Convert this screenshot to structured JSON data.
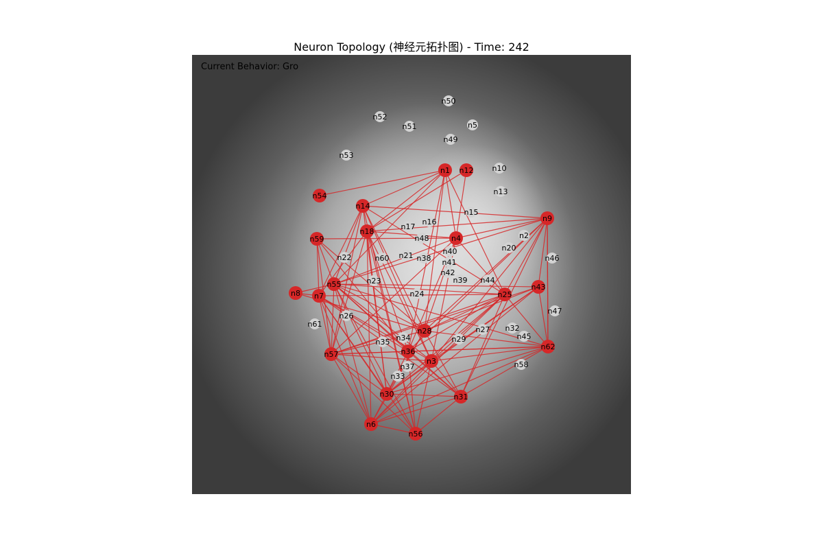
{
  "title": "Neuron Topology (神经元拓扑图) - Time: 242",
  "status": {
    "behavior": "Current Behavior: Gro"
  },
  "colors": {
    "active": "#d62728",
    "inactive": "#d3d3d3",
    "edge": "#d62728",
    "background": "#3a3a3a"
  },
  "nodes": [
    {
      "id": "n1",
      "active": true
    },
    {
      "id": "n12",
      "active": true
    },
    {
      "id": "n54",
      "active": true
    },
    {
      "id": "n14",
      "active": true
    },
    {
      "id": "n18",
      "active": true
    },
    {
      "id": "n59",
      "active": true
    },
    {
      "id": "n4",
      "active": true
    },
    {
      "id": "n9",
      "active": true
    },
    {
      "id": "n55",
      "active": true
    },
    {
      "id": "n8",
      "active": true
    },
    {
      "id": "n7",
      "active": true
    },
    {
      "id": "n25",
      "active": true
    },
    {
      "id": "n43",
      "active": true
    },
    {
      "id": "n28",
      "active": true
    },
    {
      "id": "n36",
      "active": true
    },
    {
      "id": "n3",
      "active": true
    },
    {
      "id": "n57",
      "active": true
    },
    {
      "id": "n62",
      "active": true
    },
    {
      "id": "n30",
      "active": true
    },
    {
      "id": "n31",
      "active": true
    },
    {
      "id": "n6",
      "active": true
    },
    {
      "id": "n56",
      "active": true
    },
    {
      "id": "n50",
      "active": false
    },
    {
      "id": "n52",
      "active": false
    },
    {
      "id": "n51",
      "active": false
    },
    {
      "id": "n5",
      "active": false
    },
    {
      "id": "n49",
      "active": false
    },
    {
      "id": "n53",
      "active": false
    },
    {
      "id": "n10",
      "active": false
    },
    {
      "id": "n13",
      "active": false
    },
    {
      "id": "n15",
      "active": false
    },
    {
      "id": "n16",
      "active": false
    },
    {
      "id": "n17",
      "active": false
    },
    {
      "id": "n48",
      "active": false
    },
    {
      "id": "n2",
      "active": false
    },
    {
      "id": "n20",
      "active": false
    },
    {
      "id": "n46",
      "active": false
    },
    {
      "id": "n40",
      "active": false
    },
    {
      "id": "n22",
      "active": false
    },
    {
      "id": "n60",
      "active": false
    },
    {
      "id": "n21",
      "active": false
    },
    {
      "id": "n38",
      "active": false
    },
    {
      "id": "n41",
      "active": false
    },
    {
      "id": "n42",
      "active": false
    },
    {
      "id": "n39",
      "active": false
    },
    {
      "id": "n44",
      "active": false
    },
    {
      "id": "n23",
      "active": false
    },
    {
      "id": "n24",
      "active": false
    },
    {
      "id": "n47",
      "active": false
    },
    {
      "id": "n26",
      "active": false
    },
    {
      "id": "n61",
      "active": false
    },
    {
      "id": "n27",
      "active": false
    },
    {
      "id": "n32",
      "active": false
    },
    {
      "id": "n45",
      "active": false
    },
    {
      "id": "n34",
      "active": false
    },
    {
      "id": "n35",
      "active": false
    },
    {
      "id": "n29",
      "active": false
    },
    {
      "id": "n37",
      "active": false
    },
    {
      "id": "n33",
      "active": false
    },
    {
      "id": "n58",
      "active": false
    }
  ],
  "edges": [
    [
      "n1",
      "n54"
    ],
    [
      "n1",
      "n14"
    ],
    [
      "n1",
      "n18"
    ],
    [
      "n1",
      "n4"
    ],
    [
      "n1",
      "n25"
    ],
    [
      "n1",
      "n55"
    ],
    [
      "n1",
      "n36"
    ],
    [
      "n1",
      "n28"
    ],
    [
      "n12",
      "n4"
    ],
    [
      "n12",
      "n18"
    ],
    [
      "n14",
      "n9"
    ],
    [
      "n14",
      "n25"
    ],
    [
      "n14",
      "n57"
    ],
    [
      "n14",
      "n3"
    ],
    [
      "n14",
      "n7"
    ],
    [
      "n14",
      "n30"
    ],
    [
      "n14",
      "n28"
    ],
    [
      "n14",
      "n55"
    ],
    [
      "n18",
      "n9"
    ],
    [
      "n18",
      "n4"
    ],
    [
      "n18",
      "n7"
    ],
    [
      "n18",
      "n30"
    ],
    [
      "n18",
      "n56"
    ],
    [
      "n18",
      "n3"
    ],
    [
      "n18",
      "n36"
    ],
    [
      "n18",
      "n6"
    ],
    [
      "n18",
      "n57"
    ],
    [
      "n59",
      "n4"
    ],
    [
      "n59",
      "n57"
    ],
    [
      "n59",
      "n55"
    ],
    [
      "n59",
      "n7"
    ],
    [
      "n59",
      "n36"
    ],
    [
      "n59",
      "n28"
    ],
    [
      "n4",
      "n25"
    ],
    [
      "n4",
      "n55"
    ],
    [
      "n4",
      "n28"
    ],
    [
      "n4",
      "n36"
    ],
    [
      "n4",
      "n9"
    ],
    [
      "n4",
      "n3"
    ],
    [
      "n4",
      "n57"
    ],
    [
      "n9",
      "n55"
    ],
    [
      "n9",
      "n3"
    ],
    [
      "n9",
      "n62"
    ],
    [
      "n9",
      "n31"
    ],
    [
      "n9",
      "n36"
    ],
    [
      "n9",
      "n25"
    ],
    [
      "n9",
      "n28"
    ],
    [
      "n9",
      "n43"
    ],
    [
      "n55",
      "n25"
    ],
    [
      "n55",
      "n43"
    ],
    [
      "n55",
      "n62"
    ],
    [
      "n55",
      "n3"
    ],
    [
      "n55",
      "n30"
    ],
    [
      "n55",
      "n6"
    ],
    [
      "n55",
      "n56"
    ],
    [
      "n55",
      "n57"
    ],
    [
      "n55",
      "n31"
    ],
    [
      "n55",
      "n28"
    ],
    [
      "n55",
      "n36"
    ],
    [
      "n8",
      "n55"
    ],
    [
      "n8",
      "n7"
    ],
    [
      "n8",
      "n28"
    ],
    [
      "n7",
      "n57"
    ],
    [
      "n7",
      "n3"
    ],
    [
      "n7",
      "n36"
    ],
    [
      "n7",
      "n30"
    ],
    [
      "n7",
      "n31"
    ],
    [
      "n7",
      "n25"
    ],
    [
      "n7",
      "n6"
    ],
    [
      "n7",
      "n56"
    ],
    [
      "n25",
      "n57"
    ],
    [
      "n25",
      "n62"
    ],
    [
      "n25",
      "n30"
    ],
    [
      "n25",
      "n6"
    ],
    [
      "n25",
      "n31"
    ],
    [
      "n25",
      "n3"
    ],
    [
      "n25",
      "n36"
    ],
    [
      "n25",
      "n28"
    ],
    [
      "n43",
      "n57"
    ],
    [
      "n43",
      "n6"
    ],
    [
      "n43",
      "n3"
    ],
    [
      "n43",
      "n28"
    ],
    [
      "n43",
      "n30"
    ],
    [
      "n28",
      "n57"
    ],
    [
      "n28",
      "n6"
    ],
    [
      "n28",
      "n31"
    ],
    [
      "n28",
      "n30"
    ],
    [
      "n28",
      "n62"
    ],
    [
      "n36",
      "n57"
    ],
    [
      "n36",
      "n56"
    ],
    [
      "n36",
      "n31"
    ],
    [
      "n36",
      "n30"
    ],
    [
      "n3",
      "n57"
    ],
    [
      "n3",
      "n62"
    ],
    [
      "n3",
      "n56"
    ],
    [
      "n3",
      "n31"
    ],
    [
      "n3",
      "n6"
    ],
    [
      "n3",
      "n30"
    ],
    [
      "n57",
      "n62"
    ],
    [
      "n57",
      "n30"
    ],
    [
      "n57",
      "n6"
    ],
    [
      "n57",
      "n56"
    ],
    [
      "n62",
      "n6"
    ],
    [
      "n62",
      "n30"
    ],
    [
      "n62",
      "n31"
    ],
    [
      "n30",
      "n31"
    ],
    [
      "n30",
      "n6"
    ],
    [
      "n31",
      "n6"
    ],
    [
      "n31",
      "n56"
    ],
    [
      "n6",
      "n56"
    ],
    [
      "n9",
      "n62"
    ],
    [
      "n43",
      "n62"
    ],
    [
      "n14",
      "n56"
    ],
    [
      "n36",
      "n62"
    ]
  ]
}
